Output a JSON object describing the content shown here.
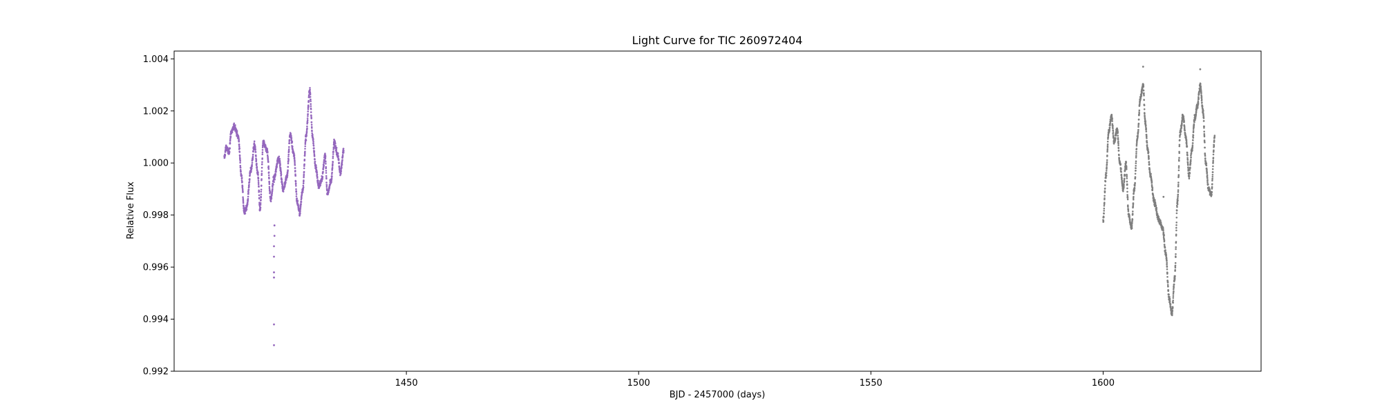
{
  "chart_data": {
    "type": "scatter",
    "title": "Light Curve for TIC 260972404",
    "xlabel": "BJD - 2457000 (days)",
    "ylabel": "Relative Flux",
    "xlim": [
      1400,
      1634
    ],
    "ylim": [
      0.992,
      1.0043
    ],
    "xticks": [
      1450,
      1500,
      1550,
      1600
    ],
    "yticks": [
      0.992,
      0.994,
      0.996,
      0.998,
      1.0,
      1.002,
      1.004
    ],
    "xtick_labels": [
      "1450",
      "1500",
      "1550",
      "1600"
    ],
    "ytick_labels": [
      "0.992",
      "0.994",
      "0.996",
      "0.998",
      "1.000",
      "1.002",
      "1.004"
    ],
    "grid": false,
    "legend": "none",
    "series": [
      {
        "color": "#9467bd",
        "x_range": [
          1410.8,
          1436.5
        ],
        "keypoints": [
          [
            1410.8,
            1.0002
          ],
          [
            1411.2,
            1.0006
          ],
          [
            1411.8,
            1.0004
          ],
          [
            1412.3,
            1.0012
          ],
          [
            1413.0,
            1.0014
          ],
          [
            1413.8,
            1.001
          ],
          [
            1414.5,
            0.9995
          ],
          [
            1415.1,
            0.9981
          ],
          [
            1415.6,
            0.9983
          ],
          [
            1416.5,
            0.9997
          ],
          [
            1417.3,
            1.0007
          ],
          [
            1418.0,
            0.9996
          ],
          [
            1418.5,
            0.9982
          ],
          [
            1419.2,
            1.0008
          ],
          [
            1420.0,
            1.0005
          ],
          [
            1420.8,
            0.9986
          ],
          [
            1421.5,
            0.9994
          ],
          [
            1422.5,
            1.0002
          ],
          [
            1423.5,
            0.999
          ],
          [
            1424.3,
            0.9995
          ],
          [
            1425.0,
            1.0011
          ],
          [
            1425.8,
            1.0003
          ],
          [
            1426.5,
            0.9985
          ],
          [
            1427.0,
            0.9981
          ],
          [
            1427.7,
            0.999
          ],
          [
            1428.4,
            1.001
          ],
          [
            1429.2,
            1.0028
          ],
          [
            1429.8,
            1.001
          ],
          [
            1430.5,
            0.9998
          ],
          [
            1431.2,
            0.9991
          ],
          [
            1431.8,
            0.9994
          ],
          [
            1432.5,
            1.0003
          ],
          [
            1433.0,
            0.9988
          ],
          [
            1433.8,
            0.9993
          ],
          [
            1434.5,
            1.0008
          ],
          [
            1435.2,
            1.0003
          ],
          [
            1435.8,
            0.9996
          ],
          [
            1436.5,
            1.0005
          ]
        ],
        "outliers": [
          [
            1421.5,
            0.9938
          ],
          [
            1421.5,
            0.993
          ],
          [
            1421.5,
            0.9956
          ],
          [
            1421.5,
            0.9958
          ],
          [
            1421.5,
            0.9964
          ],
          [
            1421.5,
            0.9968
          ],
          [
            1421.6,
            0.9972
          ],
          [
            1421.6,
            0.9976
          ]
        ]
      },
      {
        "color": "#7f7f7f",
        "x_range": [
          1600.0,
          1624.0
        ],
        "keypoints": [
          [
            1600.0,
            0.9978
          ],
          [
            1600.6,
            0.9995
          ],
          [
            1601.2,
            1.0012
          ],
          [
            1601.8,
            1.0018
          ],
          [
            1602.4,
            1.0008
          ],
          [
            1603.0,
            1.0013
          ],
          [
            1603.6,
            1.0
          ],
          [
            1604.3,
            0.999
          ],
          [
            1604.9,
            1.0
          ],
          [
            1605.5,
            0.998
          ],
          [
            1606.1,
            0.9975
          ],
          [
            1606.7,
            0.999
          ],
          [
            1607.4,
            1.001
          ],
          [
            1608.0,
            1.0025
          ],
          [
            1608.6,
            1.003
          ],
          [
            1609.1,
            1.0015
          ],
          [
            1609.6,
            1.0005
          ],
          [
            1610.2,
            0.9995
          ],
          [
            1611.0,
            0.9985
          ],
          [
            1612.0,
            0.9978
          ],
          [
            1612.8,
            0.9975
          ],
          [
            1613.5,
            0.9965
          ],
          [
            1614.2,
            0.9948
          ],
          [
            1614.8,
            0.9942
          ],
          [
            1615.4,
            0.9956
          ],
          [
            1616.0,
            0.9985
          ],
          [
            1616.6,
            1.0012
          ],
          [
            1617.2,
            1.0018
          ],
          [
            1617.8,
            1.001
          ],
          [
            1618.5,
            0.9995
          ],
          [
            1619.1,
            1.0005
          ],
          [
            1619.7,
            1.0017
          ],
          [
            1620.3,
            1.0022
          ],
          [
            1620.9,
            1.003
          ],
          [
            1621.5,
            1.002
          ],
          [
            1622.1,
            1.0
          ],
          [
            1622.7,
            0.999
          ],
          [
            1623.3,
            0.9988
          ],
          [
            1624.0,
            1.001
          ]
        ],
        "outliers": [
          [
            1608.6,
            1.0037
          ],
          [
            1620.9,
            1.0036
          ],
          [
            1613.0,
            0.9987
          ]
        ]
      }
    ]
  }
}
